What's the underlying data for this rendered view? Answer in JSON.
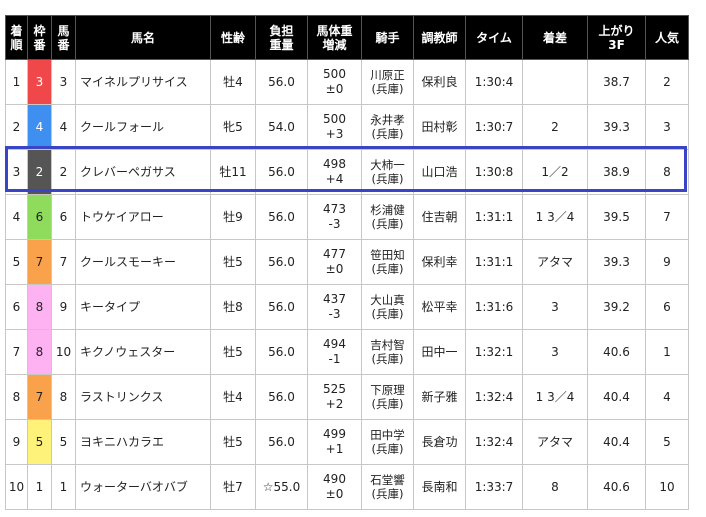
{
  "headers": {
    "finish": [
      "着",
      "順"
    ],
    "frame": [
      "枠",
      "番"
    ],
    "number": [
      "馬",
      "番"
    ],
    "horse": "馬名",
    "sex_age": "性齢",
    "weight": [
      "負担",
      "重量"
    ],
    "body_weight": [
      "馬体重",
      "増減"
    ],
    "jockey": "騎手",
    "trainer": "調教師",
    "time": "タイム",
    "margin": "着差",
    "last3f": [
      "上がり",
      "3F"
    ],
    "popularity": "人気"
  },
  "rows": [
    {
      "finish": "1",
      "frame": "3",
      "number": "3",
      "horse": "マイネルプリサイス",
      "sex_age": "牡4",
      "weight": "56.0",
      "body_weight": "500",
      "diff": "±0",
      "jockey": "川原正",
      "jockey_region": "(兵庫)",
      "trainer": "保利良",
      "time": "1:30:4",
      "margin": "",
      "last3f": "38.7",
      "popularity": "2"
    },
    {
      "finish": "2",
      "frame": "4",
      "number": "4",
      "horse": "クールフォール",
      "sex_age": "牝5",
      "weight": "54.0",
      "body_weight": "500",
      "diff": "+3",
      "jockey": "永井孝",
      "jockey_region": "(兵庫)",
      "trainer": "田村彰",
      "time": "1:30:7",
      "margin": "2",
      "last3f": "39.3",
      "popularity": "3"
    },
    {
      "finish": "3",
      "frame": "2",
      "number": "2",
      "horse": "クレバーペガサス",
      "sex_age": "牡11",
      "weight": "56.0",
      "body_weight": "498",
      "diff": "+4",
      "jockey": "大柿一",
      "jockey_region": "(兵庫)",
      "trainer": "山口浩",
      "time": "1:30:8",
      "margin": "1／2",
      "last3f": "38.9",
      "popularity": "8"
    },
    {
      "finish": "4",
      "frame": "6",
      "number": "6",
      "horse": "トウケイアロー",
      "sex_age": "牡9",
      "weight": "56.0",
      "body_weight": "473",
      "diff": "-3",
      "jockey": "杉浦健",
      "jockey_region": "(兵庫)",
      "trainer": "住吉朝",
      "time": "1:31:1",
      "margin": "1 3／4",
      "last3f": "39.5",
      "popularity": "7"
    },
    {
      "finish": "5",
      "frame": "7",
      "number": "7",
      "horse": "クールスモーキー",
      "sex_age": "牡5",
      "weight": "56.0",
      "body_weight": "477",
      "diff": "±0",
      "jockey": "笹田知",
      "jockey_region": "(兵庫)",
      "trainer": "保利幸",
      "time": "1:31:1",
      "margin": "アタマ",
      "last3f": "39.3",
      "popularity": "9"
    },
    {
      "finish": "6",
      "frame": "8",
      "number": "9",
      "horse": "キータイプ",
      "sex_age": "牡8",
      "weight": "56.0",
      "body_weight": "437",
      "diff": "-3",
      "jockey": "大山真",
      "jockey_region": "(兵庫)",
      "trainer": "松平幸",
      "time": "1:31:6",
      "margin": "3",
      "last3f": "39.2",
      "popularity": "6"
    },
    {
      "finish": "7",
      "frame": "8",
      "number": "10",
      "horse": "キクノウェスター",
      "sex_age": "牡5",
      "weight": "56.0",
      "body_weight": "494",
      "diff": "-1",
      "jockey": "吉村智",
      "jockey_region": "(兵庫)",
      "trainer": "田中一",
      "time": "1:32:1",
      "margin": "3",
      "last3f": "40.6",
      "popularity": "1"
    },
    {
      "finish": "8",
      "frame": "7",
      "number": "8",
      "horse": "ラストリンクス",
      "sex_age": "牡4",
      "weight": "56.0",
      "body_weight": "525",
      "diff": "+2",
      "jockey": "下原理",
      "jockey_region": "(兵庫)",
      "trainer": "新子雅",
      "time": "1:32:4",
      "margin": "1 3／4",
      "last3f": "40.4",
      "popularity": "4"
    },
    {
      "finish": "9",
      "frame": "5",
      "number": "5",
      "horse": "ヨキニハカラエ",
      "sex_age": "牡5",
      "weight": "56.0",
      "body_weight": "499",
      "diff": "+1",
      "jockey": "田中学",
      "jockey_region": "(兵庫)",
      "trainer": "長倉功",
      "time": "1:32:4",
      "margin": "アタマ",
      "last3f": "40.4",
      "popularity": "5"
    },
    {
      "finish": "10",
      "frame": "1",
      "number": "1",
      "horse": "ウォーターバオバブ",
      "sex_age": "牡7",
      "weight": "☆55.0",
      "body_weight": "490",
      "diff": "±0",
      "jockey": "石堂響",
      "jockey_region": "(兵庫)",
      "trainer": "長南和",
      "time": "1:33:7",
      "margin": "8",
      "last3f": "40.6",
      "popularity": "10"
    }
  ],
  "frame_colors": {
    "1": "#ffffff",
    "2": "#555555",
    "3": "#f0484a",
    "4": "#3f8ff1",
    "5": "#fff27a",
    "6": "#8fdc5c",
    "7": "#f9a24b",
    "8": "#ffb2f2"
  },
  "highlight_color": "#3a44c7"
}
